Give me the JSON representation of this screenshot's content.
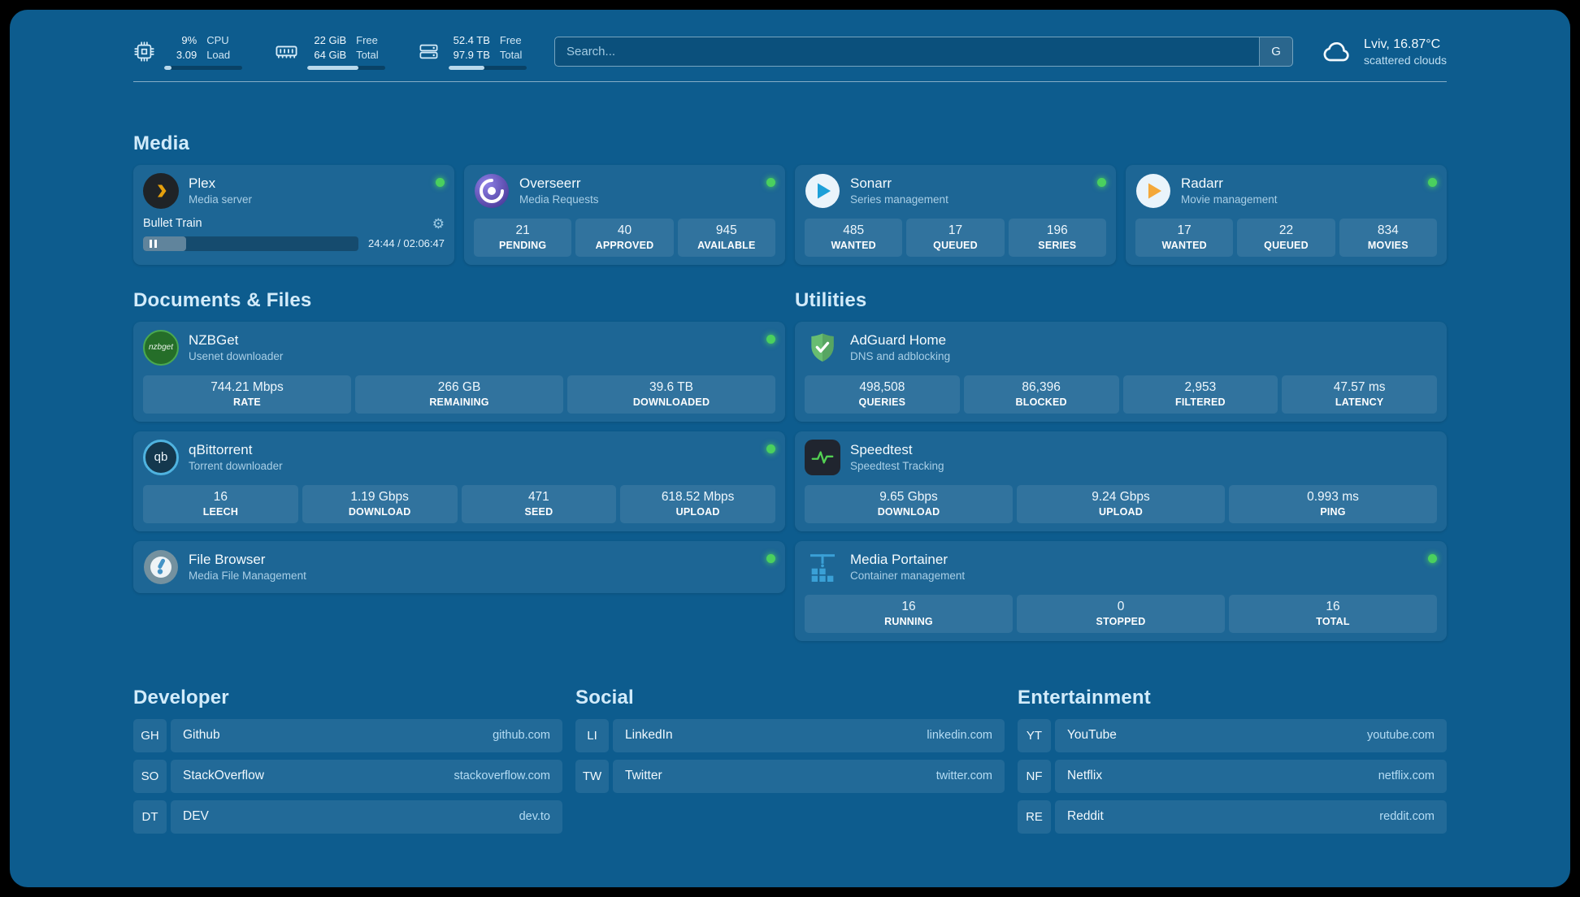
{
  "colors": {
    "status-green": "#4ad05e",
    "plex-orange": "#e5a00d",
    "sonarr-blue": "#1c9fd8",
    "radarr-gold": "#f4a83a",
    "adguard-green": "#68bd71",
    "speedtest-green": "#53d153",
    "qbittorrent-blue": "#4fb3e0",
    "portainer-blue": "#3aa0d6",
    "page-background": "#0d5c8e"
  },
  "topbar": {
    "cpu": {
      "value1": "9%",
      "value2": "3.09",
      "label1": "CPU",
      "label2": "Load",
      "progress": 9
    },
    "memory": {
      "value1": "22 GiB",
      "value2": "64 GiB",
      "label1": "Free",
      "label2": "Total",
      "progress": 66
    },
    "disk": {
      "value1": "52.4 TB",
      "value2": "97.9 TB",
      "label1": "Free",
      "label2": "Total",
      "progress": 46
    },
    "search": {
      "placeholder": "Search...",
      "button_label": "G"
    },
    "weather": {
      "location": "Lviv, 16.87°C",
      "condition": "scattered clouds"
    }
  },
  "sections": {
    "media": {
      "title": "Media",
      "apps": [
        {
          "name": "Plex",
          "subtitle": "Media server",
          "online": true,
          "now_playing": {
            "title": "Bullet Train",
            "time": "24:44 / 02:06:47",
            "progress": 20
          }
        },
        {
          "name": "Overseerr",
          "subtitle": "Media Requests",
          "online": true,
          "stats": [
            {
              "value": "21",
              "label": "PENDING"
            },
            {
              "value": "40",
              "label": "APPROVED"
            },
            {
              "value": "945",
              "label": "AVAILABLE"
            }
          ]
        },
        {
          "name": "Sonarr",
          "subtitle": "Series management",
          "online": true,
          "stats": [
            {
              "value": "485",
              "label": "WANTED"
            },
            {
              "value": "17",
              "label": "QUEUED"
            },
            {
              "value": "196",
              "label": "SERIES"
            }
          ]
        },
        {
          "name": "Radarr",
          "subtitle": "Movie management",
          "online": true,
          "stats": [
            {
              "value": "17",
              "label": "WANTED"
            },
            {
              "value": "22",
              "label": "QUEUED"
            },
            {
              "value": "834",
              "label": "MOVIES"
            }
          ]
        }
      ]
    },
    "documents": {
      "title": "Documents & Files",
      "apps": [
        {
          "name": "NZBGet",
          "subtitle": "Usenet downloader",
          "icon_text": "nzbget",
          "online": true,
          "stats": [
            {
              "value": "744.21 Mbps",
              "label": "RATE"
            },
            {
              "value": "266 GB",
              "label": "REMAINING"
            },
            {
              "value": "39.6 TB",
              "label": "DOWNLOADED"
            }
          ]
        },
        {
          "name": "qBittorrent",
          "subtitle": "Torrent downloader",
          "icon_text": "qb",
          "online": true,
          "stats": [
            {
              "value": "16",
              "label": "LEECH"
            },
            {
              "value": "1.19 Gbps",
              "label": "DOWNLOAD"
            },
            {
              "value": "471",
              "label": "SEED"
            },
            {
              "value": "618.52 Mbps",
              "label": "UPLOAD"
            }
          ]
        },
        {
          "name": "File Browser",
          "subtitle": "Media File Management",
          "online": true
        }
      ]
    },
    "utilities": {
      "title": "Utilities",
      "apps": [
        {
          "name": "AdGuard Home",
          "subtitle": "DNS and adblocking",
          "stats": [
            {
              "value": "498,508",
              "label": "QUERIES"
            },
            {
              "value": "86,396",
              "label": "BLOCKED"
            },
            {
              "value": "2,953",
              "label": "FILTERED"
            },
            {
              "value": "47.57 ms",
              "label": "LATENCY"
            }
          ]
        },
        {
          "name": "Speedtest",
          "subtitle": "Speedtest Tracking",
          "stats": [
            {
              "value": "9.65 Gbps",
              "label": "DOWNLOAD"
            },
            {
              "value": "9.24 Gbps",
              "label": "UPLOAD"
            },
            {
              "value": "0.993 ms",
              "label": "PING"
            }
          ]
        },
        {
          "name": "Media Portainer",
          "subtitle": "Container management",
          "online": true,
          "stats": [
            {
              "value": "16",
              "label": "RUNNING"
            },
            {
              "value": "0",
              "label": "STOPPED"
            },
            {
              "value": "16",
              "label": "TOTAL"
            }
          ]
        }
      ]
    },
    "bookmarks": [
      {
        "title": "Developer",
        "items": [
          {
            "abbr": "GH",
            "name": "Github",
            "url": "github.com"
          },
          {
            "abbr": "SO",
            "name": "StackOverflow",
            "url": "stackoverflow.com"
          },
          {
            "abbr": "DT",
            "name": "DEV",
            "url": "dev.to"
          }
        ]
      },
      {
        "title": "Social",
        "items": [
          {
            "abbr": "LI",
            "name": "LinkedIn",
            "url": "linkedin.com"
          },
          {
            "abbr": "TW",
            "name": "Twitter",
            "url": "twitter.com"
          }
        ]
      },
      {
        "title": "Entertainment",
        "items": [
          {
            "abbr": "YT",
            "name": "YouTube",
            "url": "youtube.com"
          },
          {
            "abbr": "NF",
            "name": "Netflix",
            "url": "netflix.com"
          },
          {
            "abbr": "RE",
            "name": "Reddit",
            "url": "reddit.com"
          }
        ]
      }
    ]
  }
}
